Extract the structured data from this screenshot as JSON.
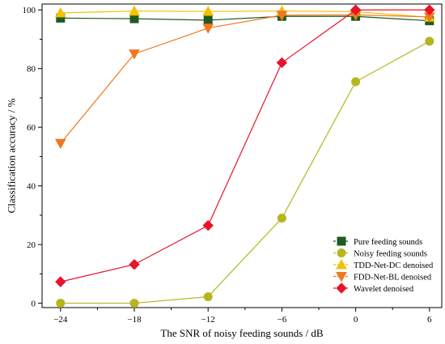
{
  "chart_data": {
    "type": "line",
    "xlabel": "The SNR of noisy feeding sounds / dB",
    "ylabel": "Classification accuracy / %",
    "x": [
      -24,
      -18,
      -12,
      -6,
      0,
      6
    ],
    "xlim": [
      -25.5,
      7
    ],
    "ylim": [
      -1.5,
      102
    ],
    "xticks": [
      -24,
      -18,
      -12,
      -6,
      0,
      6
    ],
    "yticks": [
      0,
      20,
      40,
      60,
      80,
      100
    ],
    "grid": false,
    "legend_position": "bottom-right",
    "series": [
      {
        "name": "Pure feeding sounds",
        "color": "#1f5a1f",
        "marker": "square",
        "values": [
          97.2,
          97.0,
          96.5,
          97.8,
          97.8,
          96.3
        ]
      },
      {
        "name": "Noisy feeding sounds",
        "color": "#b5b51f",
        "marker": "circle",
        "values": [
          0.0,
          0.0,
          2.2,
          29.0,
          75.5,
          89.3
        ]
      },
      {
        "name": "TDD-Net-DC denoised",
        "color": "#f2c100",
        "marker": "triangle-up",
        "values": [
          99.0,
          99.6,
          99.5,
          99.6,
          99.4,
          97.5
        ]
      },
      {
        "name": "FDD-Net-BL denoised",
        "color": "#f07820",
        "marker": "triangle-down",
        "values": [
          54.5,
          85.0,
          93.8,
          98.2,
          98.3,
          97.6
        ]
      },
      {
        "name": "Wavelet denoised",
        "color": "#e8142a",
        "marker": "diamond",
        "values": [
          7.3,
          13.2,
          26.5,
          82.0,
          100.0,
          100.0
        ]
      }
    ]
  }
}
